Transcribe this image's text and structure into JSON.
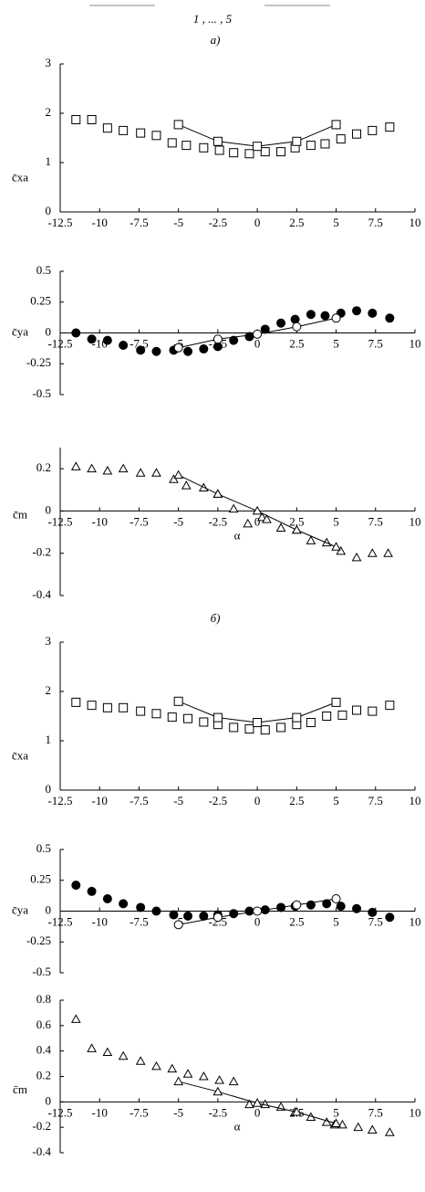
{
  "chart_data": [
    {
      "type": "scatter",
      "title": "1 , ... , 5",
      "panel": "а)",
      "ylabel": "c̄xa",
      "xlim": [
        -12.5,
        10
      ],
      "xticks": [
        -12.5,
        -10,
        -7.5,
        -5,
        -2.5,
        0,
        2.5,
        5,
        7.5,
        10
      ],
      "ylim": [
        0,
        3
      ],
      "yticks": [
        0,
        1,
        2,
        3
      ],
      "series": [
        {
          "marker": "square",
          "filled": false,
          "line": false,
          "color": "#000000",
          "x": [
            -11.5,
            -10.5,
            -9.5,
            -8.5,
            -7.4,
            -6.4,
            -5.4,
            -4.5,
            -3.4,
            -2.4,
            -1.5,
            -0.5,
            0.5,
            1.5,
            2.4,
            3.4,
            4.3,
            5.3,
            6.3,
            7.3,
            8.4
          ],
          "values": [
            1.87,
            1.87,
            1.7,
            1.65,
            1.6,
            1.55,
            1.4,
            1.35,
            1.3,
            1.25,
            1.2,
            1.18,
            1.22,
            1.22,
            1.3,
            1.35,
            1.38,
            1.48,
            1.58,
            1.65,
            1.72
          ]
        },
        {
          "marker": "square",
          "filled": false,
          "line": true,
          "color": "#000000",
          "x": [
            -5,
            -2.5,
            0,
            2.5,
            5
          ],
          "values": [
            1.77,
            1.43,
            1.33,
            1.43,
            1.77
          ]
        }
      ]
    },
    {
      "type": "scatter",
      "ylabel": "c̄ya",
      "xlim": [
        -12.5,
        10
      ],
      "xticks": [
        -12.5,
        -10,
        -7.5,
        -5,
        -2.5,
        0,
        2.5,
        5,
        7.5,
        10
      ],
      "ylim": [
        -0.5,
        0.5
      ],
      "yticks": [
        -0.5,
        -0.25,
        0,
        0.25,
        0.5
      ],
      "series": [
        {
          "marker": "circle",
          "filled": true,
          "line": false,
          "color": "#000000",
          "x": [
            -11.5,
            -10.5,
            -9.5,
            -8.5,
            -7.4,
            -6.4,
            -5.3,
            -4.4,
            -3.4,
            -2.5,
            -1.5,
            -0.5,
            0.5,
            1.5,
            2.4,
            3.4,
            4.3,
            5.3,
            6.3,
            7.3,
            8.4
          ],
          "values": [
            0,
            -0.05,
            -0.06,
            -0.1,
            -0.14,
            -0.15,
            -0.14,
            -0.15,
            -0.13,
            -0.11,
            -0.06,
            -0.03,
            0.03,
            0.08,
            0.11,
            0.15,
            0.14,
            0.16,
            0.18,
            0.16,
            0.12
          ]
        },
        {
          "marker": "circle",
          "filled": false,
          "line": true,
          "color": "#000000",
          "x": [
            -5,
            -2.5,
            0,
            2.5,
            5
          ],
          "values": [
            -0.12,
            -0.05,
            -0.01,
            0.05,
            0.12
          ]
        }
      ]
    },
    {
      "type": "scatter",
      "ylabel": "c̄m",
      "xlabel": "α",
      "xlim": [
        -12.5,
        10
      ],
      "xticks": [
        -12.5,
        -10,
        -7.5,
        -5,
        -2.5,
        0,
        2.5,
        5,
        7.5,
        10
      ],
      "ylim": [
        -0.4,
        0.3
      ],
      "yticks": [
        -0.4,
        -0.2,
        0,
        0.2
      ],
      "series": [
        {
          "marker": "triangle",
          "filled": false,
          "line": false,
          "color": "#000000",
          "x": [
            -11.5,
            -10.5,
            -9.5,
            -8.5,
            -7.4,
            -6.4,
            -5.3,
            -4.5,
            -3.4,
            -2.5,
            -1.5,
            -0.6,
            0.3,
            0.6,
            1.5,
            2.5,
            3.4,
            4.4,
            5.3,
            6.3,
            7.3,
            8.3
          ],
          "values": [
            0.21,
            0.2,
            0.19,
            0.2,
            0.18,
            0.18,
            0.15,
            0.12,
            0.11,
            0.08,
            0.01,
            -0.06,
            -0.03,
            -0.04,
            -0.08,
            -0.09,
            -0.14,
            -0.15,
            -0.19,
            -0.22,
            -0.2,
            -0.2
          ]
        },
        {
          "marker": "triangle",
          "filled": false,
          "line": true,
          "color": "#000000",
          "x": [
            -5,
            -2.5,
            0,
            2.5,
            5
          ],
          "values": [
            0.17,
            0.08,
            0,
            -0.09,
            -0.17
          ]
        }
      ]
    },
    {
      "type": "scatter",
      "panel": "б)",
      "ylabel": "c̄xa",
      "xlim": [
        -12.5,
        10
      ],
      "xticks": [
        -12.5,
        -10,
        -7.5,
        -5,
        -2.5,
        0,
        2.5,
        5,
        7.5,
        10
      ],
      "ylim": [
        0,
        3
      ],
      "yticks": [
        0,
        1,
        2,
        3
      ],
      "series": [
        {
          "marker": "square",
          "filled": false,
          "line": false,
          "color": "#000000",
          "x": [
            -11.5,
            -10.5,
            -9.5,
            -8.5,
            -7.4,
            -6.4,
            -5.4,
            -4.4,
            -3.4,
            -2.5,
            -1.5,
            -0.5,
            0.5,
            1.5,
            2.5,
            3.4,
            4.4,
            5.4,
            6.3,
            7.3,
            8.4
          ],
          "values": [
            1.78,
            1.72,
            1.67,
            1.67,
            1.6,
            1.55,
            1.48,
            1.45,
            1.38,
            1.33,
            1.27,
            1.24,
            1.22,
            1.27,
            1.33,
            1.37,
            1.5,
            1.52,
            1.62,
            1.6,
            1.72
          ]
        },
        {
          "marker": "square",
          "filled": false,
          "line": true,
          "color": "#000000",
          "x": [
            -5,
            -2.5,
            0,
            2.5,
            5
          ],
          "values": [
            1.8,
            1.47,
            1.37,
            1.47,
            1.78
          ]
        }
      ]
    },
    {
      "type": "scatter",
      "ylabel": "c̄ya",
      "xlim": [
        -12.5,
        10
      ],
      "xticks": [
        -12.5,
        -10,
        -7.5,
        -5,
        -2.5,
        0,
        2.5,
        5,
        7.5,
        10
      ],
      "ylim": [
        -0.5,
        0.5
      ],
      "yticks": [
        -0.5,
        -0.25,
        0,
        0.25,
        0.5
      ],
      "series": [
        {
          "marker": "circle",
          "filled": true,
          "line": false,
          "color": "#000000",
          "x": [
            -11.5,
            -10.5,
            -9.5,
            -8.5,
            -7.4,
            -6.4,
            -5.3,
            -4.4,
            -3.4,
            -2.5,
            -1.5,
            -0.5,
            0.5,
            1.5,
            2.4,
            3.4,
            4.4,
            5.3,
            6.3,
            7.3,
            8.4
          ],
          "values": [
            0.21,
            0.16,
            0.1,
            0.06,
            0.03,
            0,
            -0.03,
            -0.04,
            -0.04,
            -0.03,
            -0.02,
            0,
            0.01,
            0.03,
            0.04,
            0.05,
            0.06,
            0.04,
            0.02,
            -0.01,
            -0.05
          ]
        },
        {
          "marker": "circle",
          "filled": false,
          "line": true,
          "color": "#000000",
          "x": [
            -5,
            -2.5,
            0,
            2.5,
            5
          ],
          "values": [
            -0.11,
            -0.05,
            0,
            0.05,
            0.1
          ]
        }
      ]
    },
    {
      "type": "scatter",
      "ylabel": "c̄m",
      "xlabel": "α",
      "xlim": [
        -12.5,
        10
      ],
      "xticks": [
        -12.5,
        -10,
        -7.5,
        -5,
        -2.5,
        0,
        2.5,
        5,
        7.5,
        10
      ],
      "ylim": [
        -0.4,
        0.8
      ],
      "yticks": [
        -0.4,
        -0.2,
        0,
        0.2,
        0.4,
        0.6,
        0.8
      ],
      "series": [
        {
          "marker": "triangle",
          "filled": false,
          "line": false,
          "color": "#000000",
          "x": [
            -11.5,
            -10.5,
            -9.5,
            -8.5,
            -7.4,
            -6.4,
            -5.4,
            -4.4,
            -3.4,
            -2.4,
            -1.5,
            -0.5,
            0.5,
            1.5,
            2.4,
            3.4,
            4.4,
            4.9,
            5.4,
            6.4,
            7.3,
            8.4
          ],
          "values": [
            0.65,
            0.42,
            0.39,
            0.36,
            0.32,
            0.28,
            0.26,
            0.22,
            0.2,
            0.17,
            0.16,
            -0.02,
            -0.02,
            -0.04,
            -0.08,
            -0.12,
            -0.16,
            -0.18,
            -0.18,
            -0.2,
            -0.22,
            -0.24
          ]
        },
        {
          "marker": "triangle",
          "filled": false,
          "line": true,
          "color": "#000000",
          "x": [
            -5,
            -2.5,
            0,
            2.5,
            5
          ],
          "values": [
            0.16,
            0.08,
            -0.01,
            -0.08,
            -0.17
          ]
        }
      ]
    }
  ]
}
